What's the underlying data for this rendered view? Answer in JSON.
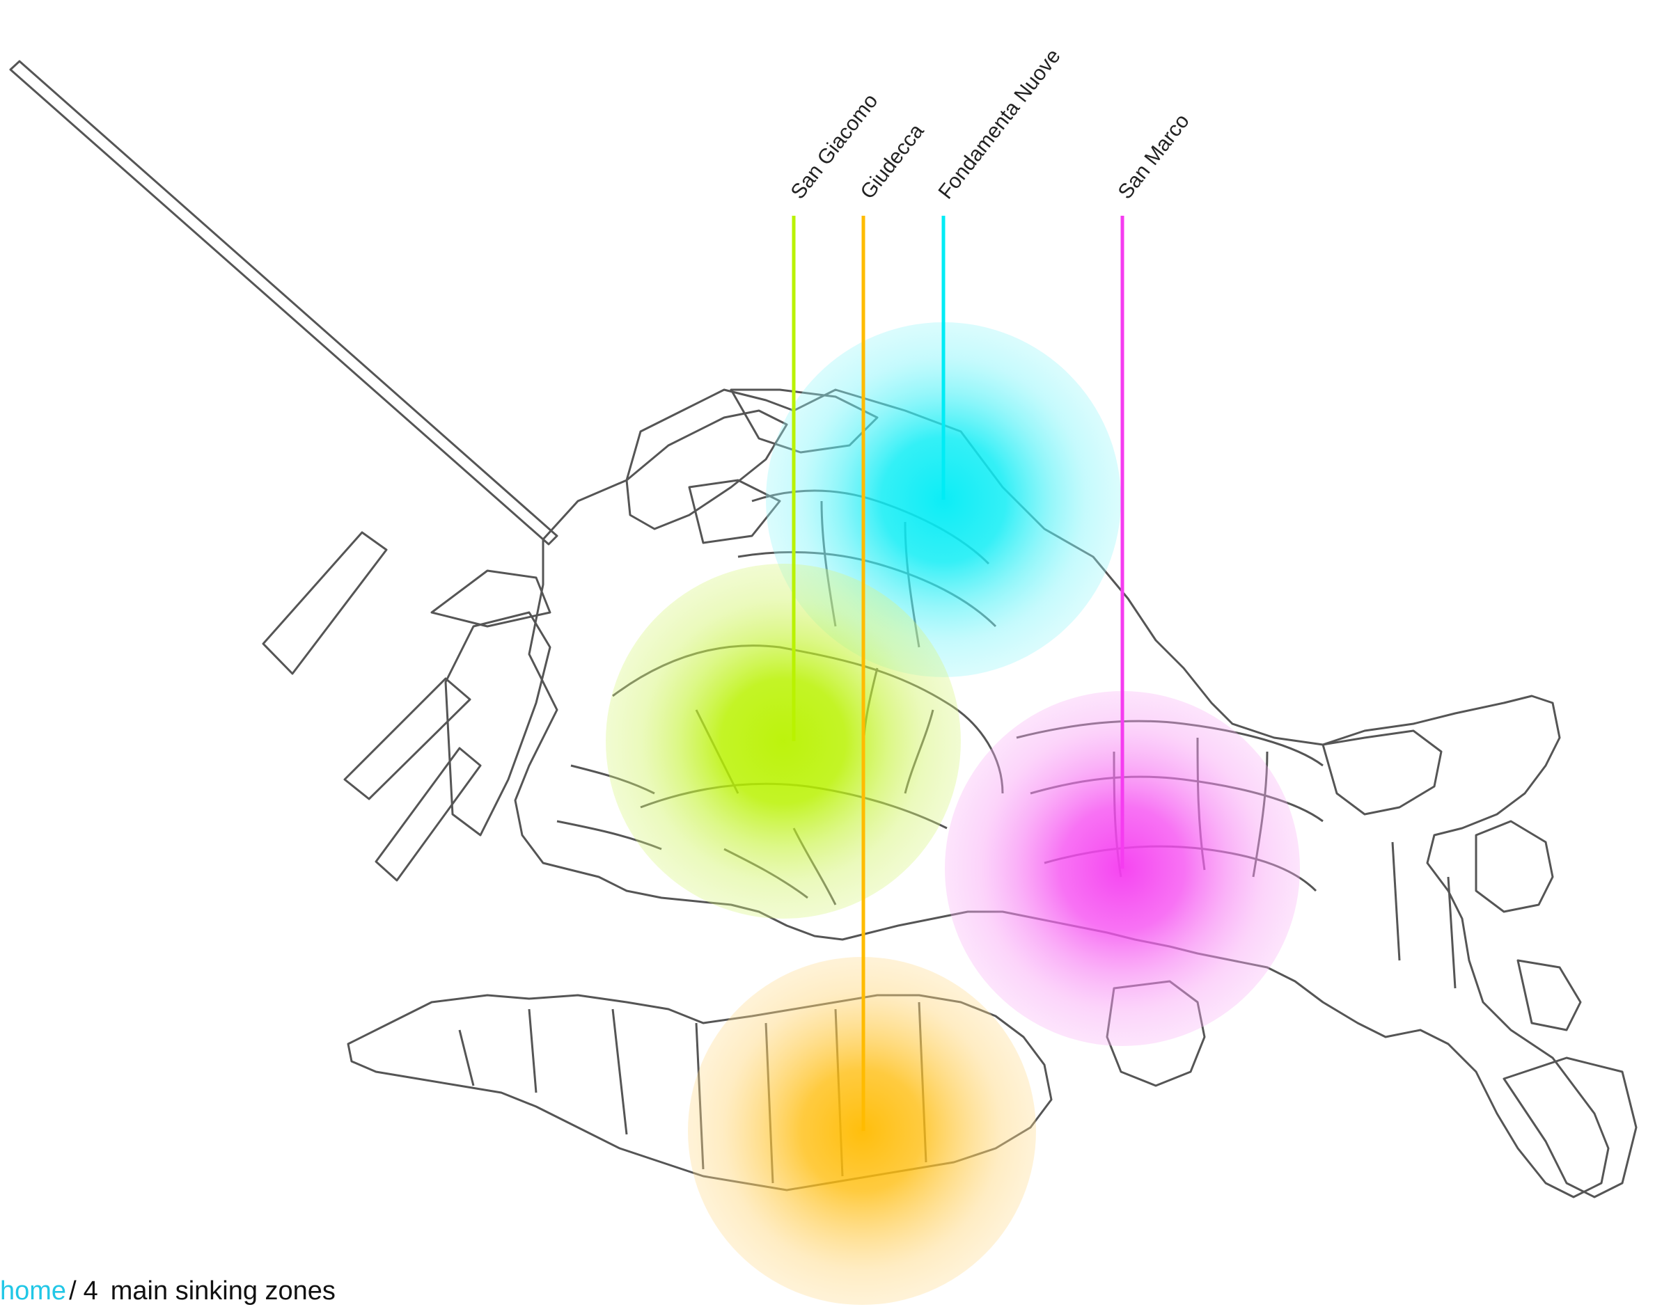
{
  "map": {
    "title_breadcrumb": {
      "home": "home",
      "separator": "/",
      "number": "4",
      "text": "main sinking zones"
    },
    "zones": [
      {
        "name": "San Giacomo",
        "color": "#b9f200"
      },
      {
        "name": "Giudecca",
        "color": "#ffbb00"
      },
      {
        "name": "Fondamenta Nuove",
        "color": "#00ecf5"
      },
      {
        "name": "San Marco",
        "color": "#f53cf0"
      }
    ]
  }
}
